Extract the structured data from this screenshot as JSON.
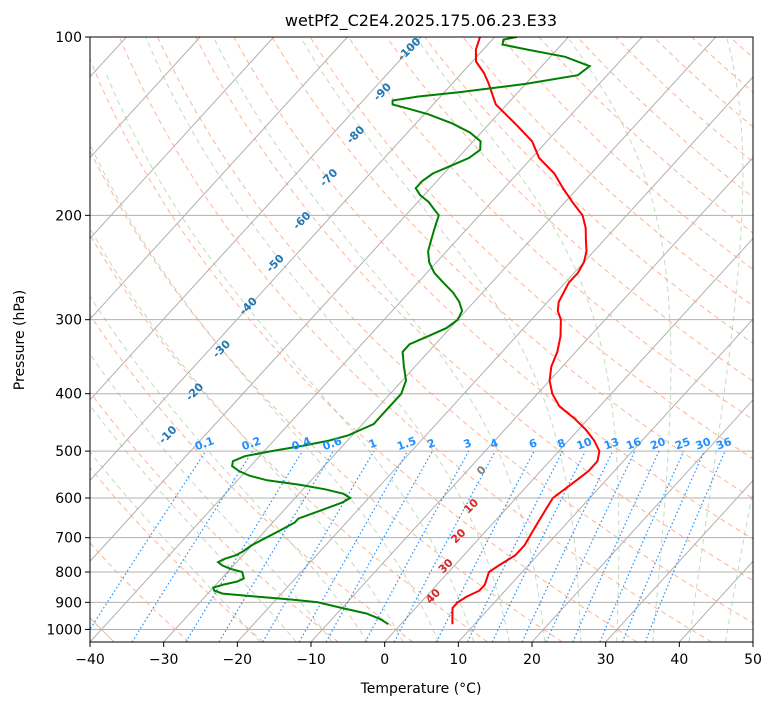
{
  "chart_data": {
    "type": "line",
    "title": "wetPf2_C2E4.2025.175.06.23.E33",
    "xlabel": "Temperature (°C)",
    "ylabel": "Pressure (hPa)",
    "xlim": [
      -40,
      50
    ],
    "ylim": [
      1050,
      100
    ],
    "y_scale": "log",
    "grid": true,
    "x_ticks": [
      -40,
      -30,
      -20,
      -10,
      0,
      10,
      20,
      30,
      40,
      50
    ],
    "y_ticks": [
      100,
      200,
      300,
      400,
      500,
      600,
      700,
      800,
      900,
      1000
    ],
    "series": [
      {
        "color": "#ff0000",
        "points": [
          [
            980,
            7.0
          ],
          [
            950,
            6.0
          ],
          [
            920,
            5.0
          ],
          [
            900,
            5.0
          ],
          [
            880,
            5.5
          ],
          [
            860,
            6.5
          ],
          [
            840,
            6.5
          ],
          [
            820,
            6.0
          ],
          [
            800,
            5.5
          ],
          [
            780,
            6.0
          ],
          [
            750,
            7.0
          ],
          [
            720,
            7.0
          ],
          [
            690,
            6.5
          ],
          [
            660,
            6.0
          ],
          [
            630,
            5.5
          ],
          [
            600,
            5.0
          ],
          [
            580,
            5.5
          ],
          [
            560,
            6.0
          ],
          [
            540,
            6.5
          ],
          [
            520,
            6.5
          ],
          [
            500,
            5.5
          ],
          [
            480,
            3.5
          ],
          [
            460,
            1.0
          ],
          [
            440,
            -2.0
          ],
          [
            420,
            -5.5
          ],
          [
            400,
            -8.0
          ],
          [
            380,
            -10.0
          ],
          [
            360,
            -11.5
          ],
          [
            340,
            -12.5
          ],
          [
            320,
            -14.0
          ],
          [
            300,
            -16.0
          ],
          [
            290,
            -17.5
          ],
          [
            280,
            -18.5
          ],
          [
            270,
            -19.0
          ],
          [
            260,
            -19.5
          ],
          [
            250,
            -19.5
          ],
          [
            240,
            -20.0
          ],
          [
            230,
            -21.0
          ],
          [
            220,
            -22.5
          ],
          [
            210,
            -24.0
          ],
          [
            200,
            -26.0
          ],
          [
            190,
            -29.0
          ],
          [
            180,
            -32.0
          ],
          [
            170,
            -35.0
          ],
          [
            160,
            -39.0
          ],
          [
            150,
            -42.0
          ],
          [
            140,
            -46.5
          ],
          [
            130,
            -51.5
          ],
          [
            120,
            -55.0
          ],
          [
            115,
            -57.0
          ],
          [
            110,
            -59.5
          ],
          [
            105,
            -61.0
          ],
          [
            100,
            -62.0
          ]
        ]
      },
      {
        "color": "#008000",
        "points": [
          [
            980,
            -1.7
          ],
          [
            960,
            -3.5
          ],
          [
            940,
            -6.0
          ],
          [
            920,
            -10.0
          ],
          [
            900,
            -14.0
          ],
          [
            890,
            -18.0
          ],
          [
            880,
            -23.0
          ],
          [
            870,
            -28.0
          ],
          [
            860,
            -29.5
          ],
          [
            850,
            -30.0
          ],
          [
            840,
            -29.0
          ],
          [
            830,
            -27.5
          ],
          [
            820,
            -27.0
          ],
          [
            800,
            -28.0
          ],
          [
            790,
            -30.0
          ],
          [
            780,
            -31.5
          ],
          [
            770,
            -32.5
          ],
          [
            760,
            -32.0
          ],
          [
            750,
            -31.0
          ],
          [
            740,
            -30.5
          ],
          [
            720,
            -30.0
          ],
          [
            700,
            -29.0
          ],
          [
            680,
            -28.0
          ],
          [
            660,
            -27.0
          ],
          [
            650,
            -27.0
          ],
          [
            630,
            -25.0
          ],
          [
            610,
            -23.0
          ],
          [
            600,
            -22.5
          ],
          [
            590,
            -24.0
          ],
          [
            580,
            -27.0
          ],
          [
            570,
            -31.0
          ],
          [
            560,
            -36.0
          ],
          [
            550,
            -39.0
          ],
          [
            540,
            -41.0
          ],
          [
            530,
            -42.5
          ],
          [
            520,
            -43.0
          ],
          [
            510,
            -42.0
          ],
          [
            500,
            -39.0
          ],
          [
            490,
            -35.5
          ],
          [
            480,
            -32.5
          ],
          [
            470,
            -30.5
          ],
          [
            460,
            -29.5
          ],
          [
            450,
            -28.5
          ],
          [
            440,
            -28.5
          ],
          [
            430,
            -28.5
          ],
          [
            420,
            -28.5
          ],
          [
            400,
            -28.5
          ],
          [
            380,
            -29.5
          ],
          [
            360,
            -31.5
          ],
          [
            340,
            -33.5
          ],
          [
            330,
            -33.5
          ],
          [
            320,
            -32.0
          ],
          [
            310,
            -30.5
          ],
          [
            300,
            -30.0
          ],
          [
            290,
            -30.5
          ],
          [
            280,
            -32.0
          ],
          [
            270,
            -34.0
          ],
          [
            260,
            -36.5
          ],
          [
            250,
            -39.0
          ],
          [
            240,
            -41.0
          ],
          [
            230,
            -42.5
          ],
          [
            220,
            -43.5
          ],
          [
            210,
            -44.5
          ],
          [
            200,
            -45.5
          ],
          [
            195,
            -47.0
          ],
          [
            190,
            -48.5
          ],
          [
            185,
            -50.5
          ],
          [
            180,
            -52.0
          ],
          [
            175,
            -52.0
          ],
          [
            170,
            -51.5
          ],
          [
            165,
            -50.0
          ],
          [
            160,
            -48.5
          ],
          [
            155,
            -48.0
          ],
          [
            150,
            -49.0
          ],
          [
            145,
            -51.5
          ],
          [
            140,
            -55.0
          ],
          [
            135,
            -59.5
          ],
          [
            132,
            -63.0
          ],
          [
            130,
            -65.5
          ],
          [
            128,
            -66.0
          ],
          [
            126,
            -63.0
          ],
          [
            124,
            -58.0
          ],
          [
            120,
            -50.0
          ],
          [
            116,
            -44.0
          ],
          [
            112,
            -43.5
          ],
          [
            108,
            -48.0
          ],
          [
            105,
            -54.0
          ],
          [
            103,
            -58.0
          ],
          [
            101,
            -58.5
          ],
          [
            100,
            -57.0
          ]
        ]
      }
    ],
    "dry_adiabat_labels": [
      "-100",
      "-90",
      "-80",
      "-70",
      "-60",
      "-50",
      "-40",
      "-30",
      "-20",
      "-10",
      "0",
      "10",
      "20",
      "30",
      "40"
    ],
    "mixing_ratio_labels": [
      "0.1",
      "0.2",
      "0.4",
      "0.6",
      "1",
      "1.5",
      "2",
      "3",
      "4",
      "6",
      "8",
      "10",
      "13",
      "16",
      "20",
      "25",
      "30",
      "36"
    ]
  }
}
